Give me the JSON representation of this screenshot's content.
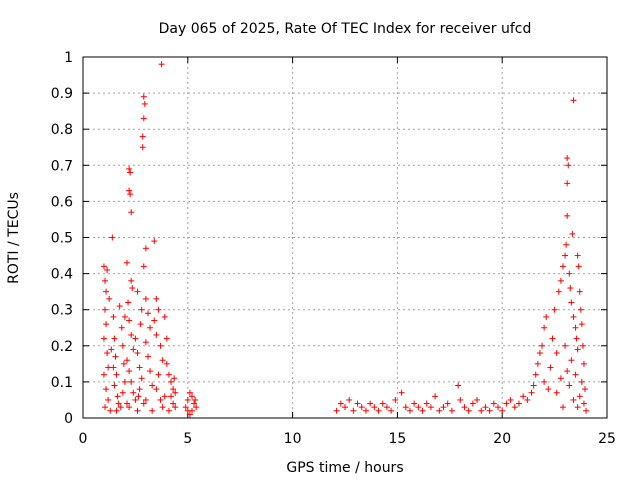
{
  "chart_data": {
    "type": "scatter",
    "title": "Day 065 of 2025, Rate Of TEC Index for receiver ufcd",
    "xlabel": "GPS time / hours",
    "ylabel": "ROTI / TECUs",
    "xlim": [
      0,
      25
    ],
    "ylim": [
      0,
      1
    ],
    "x_ticks": [
      "0",
      "5",
      "10",
      "15",
      "20",
      "25"
    ],
    "y_ticks": [
      "0",
      "0.1",
      "0.2",
      "0.3",
      "0.4",
      "0.5",
      "0.6",
      "0.7",
      "0.8",
      "0.9",
      "1"
    ],
    "x_tick_values": [
      0,
      5,
      10,
      15,
      20,
      25
    ],
    "y_tick_values": [
      0,
      0.1,
      0.2,
      0.3,
      0.4,
      0.5,
      0.6,
      0.7,
      0.8,
      0.9,
      1
    ],
    "grid": true,
    "marker": "plus",
    "series": [
      {
        "color": "#ff0000",
        "points": [
          [
            1.0,
            0.42
          ],
          [
            1.05,
            0.38
          ],
          [
            1.1,
            0.35
          ],
          [
            1.05,
            0.3
          ],
          [
            1.1,
            0.26
          ],
          [
            1.0,
            0.22
          ],
          [
            1.15,
            0.18
          ],
          [
            1.2,
            0.14
          ],
          [
            1.0,
            0.12
          ],
          [
            1.1,
            0.08
          ],
          [
            1.2,
            0.05
          ],
          [
            1.05,
            0.03
          ],
          [
            1.3,
            0.02
          ],
          [
            1.15,
            0.41
          ],
          [
            1.25,
            0.33
          ],
          [
            1.4,
            0.5
          ],
          [
            1.45,
            0.28
          ],
          [
            1.5,
            0.22
          ],
          [
            1.55,
            0.17
          ],
          [
            1.6,
            0.12
          ],
          [
            1.5,
            0.09
          ],
          [
            1.65,
            0.06
          ],
          [
            1.7,
            0.04
          ],
          [
            1.8,
            0.03
          ],
          [
            1.6,
            0.02
          ],
          [
            1.75,
            0.31
          ],
          [
            1.85,
            0.25
          ],
          [
            1.9,
            0.2
          ],
          [
            1.95,
            0.15
          ],
          [
            2.0,
            0.1
          ],
          [
            2.1,
            0.43
          ],
          [
            2.2,
            0.69
          ],
          [
            2.25,
            0.68
          ],
          [
            2.2,
            0.63
          ],
          [
            2.25,
            0.62
          ],
          [
            2.3,
            0.57
          ],
          [
            2.3,
            0.38
          ],
          [
            2.35,
            0.36
          ],
          [
            2.15,
            0.32
          ],
          [
            2.2,
            0.27
          ],
          [
            2.3,
            0.23
          ],
          [
            2.4,
            0.19
          ],
          [
            2.1,
            0.16
          ],
          [
            2.2,
            0.13
          ],
          [
            2.3,
            0.1
          ],
          [
            2.4,
            0.07
          ],
          [
            2.5,
            0.05
          ],
          [
            2.1,
            0.04
          ],
          [
            2.2,
            0.03
          ],
          [
            2.6,
            0.02
          ],
          [
            2.5,
            0.22
          ],
          [
            2.6,
            0.18
          ],
          [
            2.7,
            0.14
          ],
          [
            2.8,
            0.11
          ],
          [
            2.7,
            0.08
          ],
          [
            2.6,
            0.35
          ],
          [
            2.8,
            0.3
          ],
          [
            2.75,
            0.26
          ],
          [
            2.65,
            0.06
          ],
          [
            2.9,
            0.04
          ],
          [
            2.9,
            0.89
          ],
          [
            2.95,
            0.87
          ],
          [
            2.9,
            0.83
          ],
          [
            2.85,
            0.78
          ],
          [
            2.85,
            0.75
          ],
          [
            3.0,
            0.47
          ],
          [
            2.9,
            0.42
          ],
          [
            3.0,
            0.33
          ],
          [
            3.1,
            0.29
          ],
          [
            3.2,
            0.25
          ],
          [
            3.0,
            0.21
          ],
          [
            3.1,
            0.17
          ],
          [
            3.2,
            0.13
          ],
          [
            3.3,
            0.09
          ],
          [
            3.0,
            0.05
          ],
          [
            3.4,
            0.49
          ],
          [
            3.5,
            0.33
          ],
          [
            3.6,
            0.3
          ],
          [
            3.4,
            0.27
          ],
          [
            3.5,
            0.23
          ],
          [
            3.7,
            0.2
          ],
          [
            3.8,
            0.16
          ],
          [
            3.6,
            0.12
          ],
          [
            3.5,
            0.08
          ],
          [
            3.7,
            0.05
          ],
          [
            3.8,
            0.03
          ],
          [
            3.75,
            0.98
          ],
          [
            3.9,
            0.28
          ],
          [
            4.0,
            0.22
          ],
          [
            4.0,
            0.15
          ],
          [
            4.1,
            0.12
          ],
          [
            4.2,
            0.1
          ],
          [
            4.3,
            0.08
          ],
          [
            4.2,
            0.06
          ],
          [
            4.3,
            0.04
          ],
          [
            4.4,
            0.03
          ],
          [
            4.1,
            0.02
          ],
          [
            4.35,
            0.11
          ],
          [
            4.4,
            0.07
          ],
          [
            3.3,
            0.02
          ],
          [
            3.9,
            0.06
          ],
          [
            1.9,
            0.07
          ],
          [
            2.0,
            0.28
          ],
          [
            1.35,
            0.19
          ],
          [
            1.45,
            0.14
          ],
          [
            4.9,
            0.03
          ],
          [
            5.0,
            0.05
          ],
          [
            5.1,
            0.07
          ],
          [
            5.2,
            0.06
          ],
          [
            5.3,
            0.04
          ],
          [
            5.4,
            0.03
          ],
          [
            5.2,
            0.02
          ],
          [
            5.1,
            0.01
          ],
          [
            5.35,
            0.05
          ],
          [
            5.0,
            0.02
          ],
          [
            12.1,
            0.02
          ],
          [
            12.3,
            0.04
          ],
          [
            12.5,
            0.03
          ],
          [
            12.7,
            0.05
          ],
          [
            12.9,
            0.02
          ],
          [
            13.1,
            0.04
          ],
          [
            13.3,
            0.03
          ],
          [
            13.5,
            0.02
          ],
          [
            13.7,
            0.04
          ],
          [
            13.9,
            0.03
          ],
          [
            14.1,
            0.02
          ],
          [
            14.3,
            0.04
          ],
          [
            14.5,
            0.03
          ],
          [
            14.7,
            0.02
          ],
          [
            14.9,
            0.05
          ],
          [
            15.2,
            0.07
          ],
          [
            15.4,
            0.03
          ],
          [
            15.6,
            0.02
          ],
          [
            15.8,
            0.04
          ],
          [
            16.0,
            0.03
          ],
          [
            16.2,
            0.02
          ],
          [
            16.4,
            0.04
          ],
          [
            16.6,
            0.03
          ],
          [
            16.8,
            0.06
          ],
          [
            17.0,
            0.02
          ],
          [
            17.2,
            0.03
          ],
          [
            17.4,
            0.04
          ],
          [
            17.6,
            0.02
          ],
          [
            17.9,
            0.09
          ],
          [
            18.0,
            0.05
          ],
          [
            18.2,
            0.03
          ],
          [
            18.4,
            0.02
          ],
          [
            18.6,
            0.04
          ],
          [
            18.8,
            0.05
          ],
          [
            19.0,
            0.02
          ],
          [
            19.2,
            0.03
          ],
          [
            19.4,
            0.02
          ],
          [
            19.6,
            0.04
          ],
          [
            19.8,
            0.03
          ],
          [
            20.0,
            0.02
          ],
          [
            20.2,
            0.04
          ],
          [
            20.4,
            0.05
          ],
          [
            20.6,
            0.03
          ],
          [
            20.8,
            0.04
          ],
          [
            21.0,
            0.06
          ],
          [
            21.2,
            0.05
          ],
          [
            21.4,
            0.07
          ],
          [
            21.5,
            0.09
          ],
          [
            21.6,
            0.12
          ],
          [
            21.7,
            0.15
          ],
          [
            21.8,
            0.18
          ],
          [
            21.9,
            0.2
          ],
          [
            22.0,
            0.25
          ],
          [
            22.1,
            0.28
          ],
          [
            22.0,
            0.1
          ],
          [
            22.2,
            0.08
          ],
          [
            22.3,
            0.14
          ],
          [
            22.4,
            0.22
          ],
          [
            22.5,
            0.3
          ],
          [
            22.6,
            0.18
          ],
          [
            22.7,
            0.35
          ],
          [
            22.8,
            0.38
          ],
          [
            22.9,
            0.42
          ],
          [
            23.0,
            0.45
          ],
          [
            23.05,
            0.48
          ],
          [
            23.1,
            0.56
          ],
          [
            23.1,
            0.65
          ],
          [
            23.15,
            0.7
          ],
          [
            23.1,
            0.72
          ],
          [
            23.2,
            0.4
          ],
          [
            23.25,
            0.36
          ],
          [
            23.3,
            0.32
          ],
          [
            23.35,
            0.51
          ],
          [
            23.4,
            0.88
          ],
          [
            23.4,
            0.28
          ],
          [
            23.5,
            0.25
          ],
          [
            23.55,
            0.22
          ],
          [
            23.6,
            0.45
          ],
          [
            23.65,
            0.42
          ],
          [
            23.7,
            0.35
          ],
          [
            23.75,
            0.3
          ],
          [
            23.8,
            0.26
          ],
          [
            23.85,
            0.2
          ],
          [
            23.9,
            0.15
          ],
          [
            23.8,
            0.1
          ],
          [
            23.7,
            0.06
          ],
          [
            23.6,
            0.03
          ],
          [
            23.9,
            0.04
          ],
          [
            24.0,
            0.02
          ],
          [
            23.5,
            0.12
          ],
          [
            23.3,
            0.16
          ],
          [
            23.0,
            0.2
          ],
          [
            22.8,
            0.11
          ],
          [
            22.6,
            0.07
          ],
          [
            23.2,
            0.09
          ],
          [
            23.4,
            0.05
          ],
          [
            22.9,
            0.03
          ],
          [
            23.1,
            0.13
          ],
          [
            23.6,
            0.19
          ],
          [
            23.95,
            0.08
          ]
        ]
      }
    ]
  }
}
